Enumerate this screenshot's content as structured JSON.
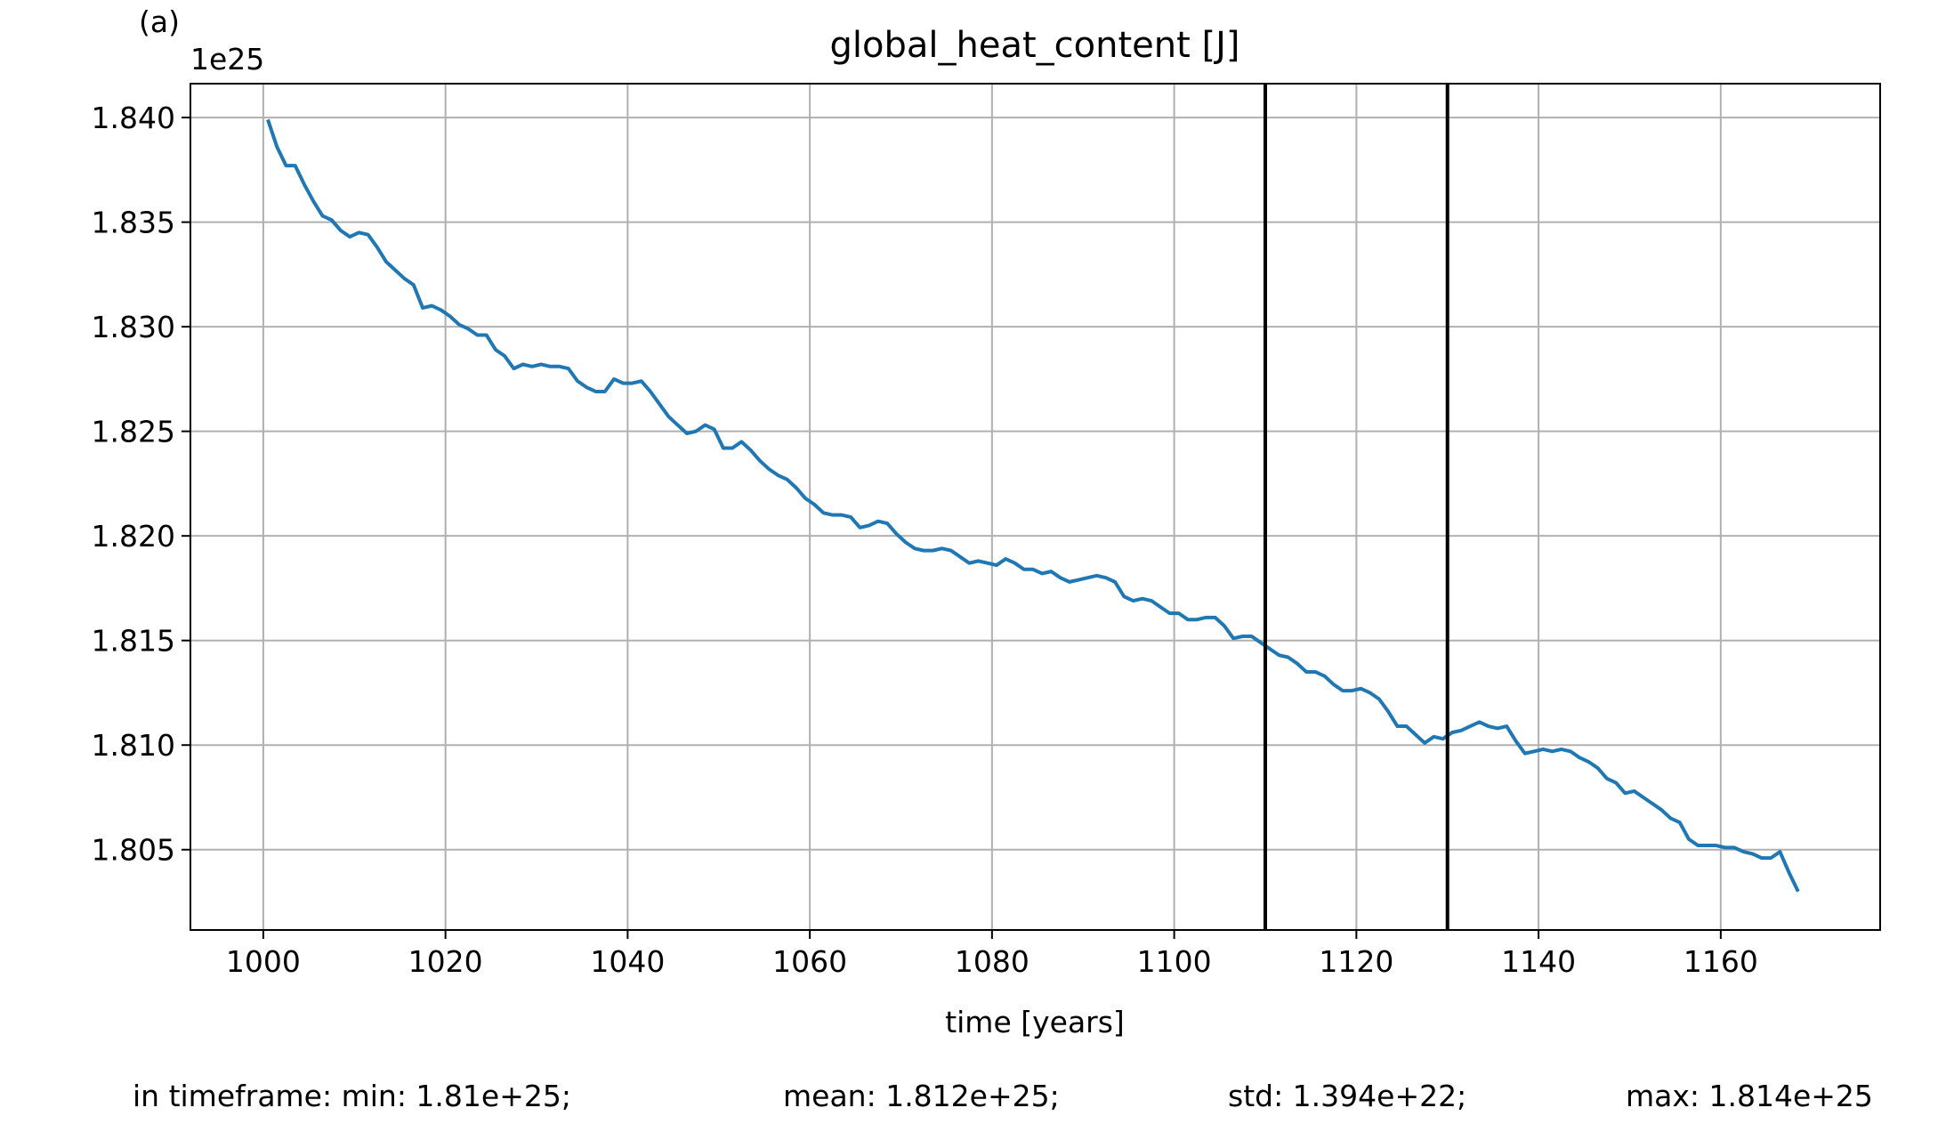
{
  "chart_data": {
    "type": "line",
    "panel_label": "(a)",
    "title": "global_heat_content [J]",
    "xlabel": "time [years]",
    "y_offset_label": "1e25",
    "color": "#1f77b4",
    "grid": true,
    "vlines": [
      1110,
      1130
    ],
    "xlim": [
      992,
      1177.5
    ],
    "ylim": [
      1.80116,
      1.84162
    ],
    "xticks": [
      1000,
      1020,
      1040,
      1060,
      1080,
      1100,
      1120,
      1140,
      1160
    ],
    "yticks": [
      {
        "value": 1.805,
        "label": "1.805"
      },
      {
        "value": 1.81,
        "label": "1.810"
      },
      {
        "value": 1.815,
        "label": "1.815"
      },
      {
        "value": 1.82,
        "label": "1.820"
      },
      {
        "value": 1.825,
        "label": "1.825"
      },
      {
        "value": 1.83,
        "label": "1.830"
      },
      {
        "value": 1.835,
        "label": "1.835"
      },
      {
        "value": 1.84,
        "label": "1.840"
      }
    ],
    "stats": [
      "in timeframe: min: 1.81e+25;",
      "mean: 1.812e+25;",
      "std: 1.394e+22;",
      "max: 1.814e+25"
    ],
    "x": [
      1000.5,
      1001.5,
      1002.5,
      1003.5,
      1004.5,
      1005.5,
      1006.5,
      1007.5,
      1008.5,
      1009.5,
      1010.5,
      1011.5,
      1012.5,
      1013.5,
      1014.5,
      1015.5,
      1016.5,
      1017.5,
      1018.5,
      1019.5,
      1020.5,
      1021.5,
      1022.5,
      1023.5,
      1024.5,
      1025.5,
      1026.5,
      1027.5,
      1028.5,
      1029.5,
      1030.5,
      1031.5,
      1032.5,
      1033.5,
      1034.5,
      1035.5,
      1036.5,
      1037.5,
      1038.5,
      1039.5,
      1040.5,
      1041.5,
      1042.5,
      1043.5,
      1044.5,
      1045.5,
      1046.5,
      1047.5,
      1048.5,
      1049.5,
      1050.5,
      1051.5,
      1052.5,
      1053.5,
      1054.5,
      1055.5,
      1056.5,
      1057.5,
      1058.5,
      1059.5,
      1060.5,
      1061.5,
      1062.5,
      1063.5,
      1064.5,
      1065.5,
      1066.5,
      1067.5,
      1068.5,
      1069.5,
      1070.5,
      1071.5,
      1072.5,
      1073.5,
      1074.5,
      1075.5,
      1076.5,
      1077.5,
      1078.5,
      1079.5,
      1080.5,
      1081.5,
      1082.5,
      1083.5,
      1084.5,
      1085.5,
      1086.5,
      1087.5,
      1088.5,
      1089.5,
      1090.5,
      1091.5,
      1092.5,
      1093.5,
      1094.5,
      1095.5,
      1096.5,
      1097.5,
      1098.5,
      1099.5,
      1100.5,
      1101.5,
      1102.5,
      1103.5,
      1104.5,
      1105.5,
      1106.5,
      1107.5,
      1108.5,
      1109.5,
      1110.5,
      1111.5,
      1112.5,
      1113.5,
      1114.5,
      1115.5,
      1116.5,
      1117.5,
      1118.5,
      1119.5,
      1120.5,
      1121.5,
      1122.5,
      1123.5,
      1124.5,
      1125.5,
      1126.5,
      1127.5,
      1128.5,
      1129.5,
      1130.5,
      1131.5,
      1132.5,
      1133.5,
      1134.5,
      1135.5,
      1136.5,
      1137.5,
      1138.5,
      1139.5,
      1140.5,
      1141.5,
      1142.5,
      1143.5,
      1144.5,
      1145.5,
      1146.5,
      1147.5,
      1148.5,
      1149.5,
      1150.5,
      1151.5,
      1152.5,
      1153.5,
      1154.5,
      1155.5,
      1156.5,
      1157.5,
      1158.5,
      1159.5,
      1160.5,
      1161.5,
      1162.5,
      1163.5,
      1164.5,
      1165.5,
      1166.5,
      1167.5,
      1168.5
    ],
    "values": [
      1.8399,
      1.8386,
      1.8377,
      1.8377,
      1.8368,
      1.836,
      1.8353,
      1.8351,
      1.8346,
      1.8343,
      1.8345,
      1.8344,
      1.8338,
      1.8331,
      1.8327,
      1.8323,
      1.832,
      1.8309,
      1.831,
      1.8308,
      1.8305,
      1.8301,
      1.8299,
      1.8296,
      1.8296,
      1.8289,
      1.8286,
      1.828,
      1.8282,
      1.8281,
      1.8282,
      1.8281,
      1.8281,
      1.828,
      1.8274,
      1.8271,
      1.8269,
      1.8269,
      1.8275,
      1.8273,
      1.8273,
      1.8274,
      1.8269,
      1.8263,
      1.8257,
      1.8253,
      1.8249,
      1.825,
      1.8253,
      1.8251,
      1.8242,
      1.8242,
      1.8245,
      1.8241,
      1.8236,
      1.8232,
      1.8229,
      1.8227,
      1.8223,
      1.8218,
      1.8215,
      1.8211,
      1.821,
      1.821,
      1.8209,
      1.8204,
      1.8205,
      1.8207,
      1.8206,
      1.8201,
      1.8197,
      1.8194,
      1.8193,
      1.8193,
      1.8194,
      1.8193,
      1.819,
      1.8187,
      1.8188,
      1.8187,
      1.8186,
      1.8189,
      1.8187,
      1.8184,
      1.8184,
      1.8182,
      1.8183,
      1.818,
      1.8178,
      1.8179,
      1.818,
      1.8181,
      1.818,
      1.8178,
      1.8171,
      1.8169,
      1.817,
      1.8169,
      1.8166,
      1.8163,
      1.8163,
      1.816,
      1.816,
      1.8161,
      1.8161,
      1.8157,
      1.8151,
      1.8152,
      1.8152,
      1.8149,
      1.8146,
      1.8143,
      1.8142,
      1.8139,
      1.8135,
      1.8135,
      1.8133,
      1.8129,
      1.8126,
      1.8126,
      1.8127,
      1.8125,
      1.8122,
      1.8116,
      1.8109,
      1.8109,
      1.8105,
      1.8101,
      1.8104,
      1.8103,
      1.8106,
      1.8107,
      1.8109,
      1.8111,
      1.8109,
      1.8108,
      1.8109,
      1.8102,
      1.8096,
      1.8097,
      1.8098,
      1.8097,
      1.8098,
      1.8097,
      1.8094,
      1.8092,
      1.8089,
      1.8084,
      1.8082,
      1.8077,
      1.8078,
      1.8075,
      1.8072,
      1.8069,
      1.8065,
      1.8063,
      1.8055,
      1.8052,
      1.8052,
      1.8052,
      1.8051,
      1.8051,
      1.8049,
      1.8048,
      1.8046,
      1.8046,
      1.8049,
      1.8039,
      1.803
    ]
  }
}
